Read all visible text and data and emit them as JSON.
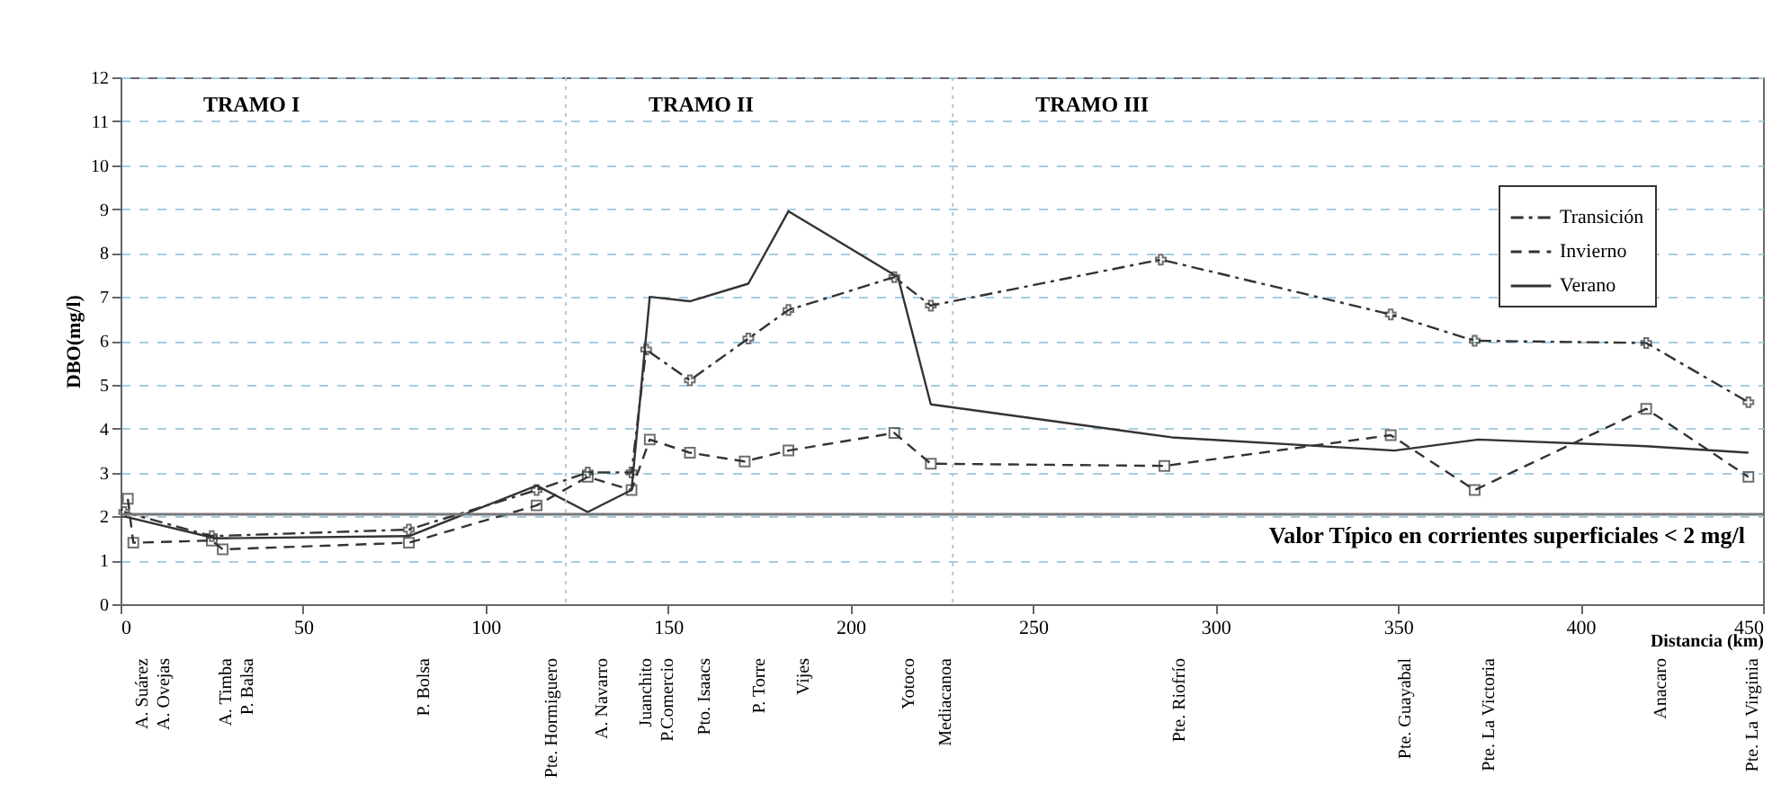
{
  "chart_data": {
    "type": "line",
    "xlabel": "Distancia (km)",
    "ylabel": "DBO(mg/l)",
    "xlim": [
      0,
      450
    ],
    "xticks": [
      0,
      50,
      100,
      150,
      200,
      250,
      300,
      350,
      400,
      450
    ],
    "ylim": [
      0,
      12
    ],
    "yticks": [
      0,
      1,
      2,
      3,
      4,
      5,
      6,
      7,
      8,
      9,
      10,
      11,
      12
    ],
    "grid": "y",
    "legend": "top right",
    "series": [
      {
        "name": "Transición",
        "color": "#333333",
        "marker": "cross",
        "line_style": "dashdot",
        "x": [
          1,
          25,
          79,
          114,
          128,
          140,
          144,
          156,
          172,
          183,
          212,
          222,
          285,
          348,
          371,
          418,
          446
        ],
        "values": [
          2.1,
          1.55,
          1.7,
          2.6,
          3.0,
          3.0,
          5.8,
          5.1,
          6.05,
          6.7,
          7.45,
          6.8,
          7.85,
          6.6,
          6.0,
          5.95,
          4.6
        ]
      },
      {
        "name": "Invierno",
        "color": "#333333",
        "marker": "square",
        "line_style": "dashed",
        "x": [
          2,
          3.5,
          25,
          28,
          79,
          114,
          128,
          140,
          145,
          156,
          171,
          183,
          212,
          222,
          286,
          348,
          371,
          418,
          446
        ],
        "values": [
          2.4,
          1.4,
          1.45,
          1.25,
          1.4,
          2.25,
          2.9,
          2.6,
          3.75,
          3.45,
          3.25,
          3.5,
          3.9,
          3.2,
          3.15,
          3.85,
          2.6,
          4.45,
          2.9
        ]
      },
      {
        "name": "Verano",
        "color": "#333333",
        "marker": "none",
        "line_style": "solid",
        "x": [
          1,
          26,
          79,
          114,
          128,
          140,
          145,
          156,
          172,
          183,
          213,
          222,
          288,
          349,
          372,
          418,
          446
        ],
        "values": [
          2.0,
          1.5,
          1.55,
          2.7,
          2.1,
          2.6,
          7.0,
          6.9,
          7.3,
          8.95,
          7.45,
          4.55,
          3.8,
          3.5,
          3.75,
          3.6,
          3.45
        ]
      }
    ],
    "ref_lines": [
      {
        "axis": "x",
        "value": 122,
        "color": "#a8cce0",
        "line_style": "dotted"
      },
      {
        "axis": "x",
        "value": 228,
        "color": "#a8cce0",
        "line_style": "dotted"
      },
      {
        "axis": "y",
        "value": 2.05,
        "color": "#777777",
        "line_style": "solid",
        "label": "Valor Típico en corrientes superficiales < 2 mg/l"
      }
    ],
    "annotations": [
      "TRAMO I",
      "TRAMO II",
      "TRAMO III",
      "A. Suárez",
      "A. Ovejas",
      "A. Timba",
      "P. Balsa",
      "P. Bolsa",
      "Pte. Hormiguero",
      "A. Navarro",
      "Juanchito",
      "P.Comercio",
      "Pto. Isaacs",
      "P. Torre",
      "Vijes",
      "Yotoco",
      "Mediacanoa",
      "Pte. Riofrío",
      "Pte. Guayabal",
      "Pte. La Victoria",
      "Anacaro",
      "Pte. La Virginia"
    ]
  }
}
